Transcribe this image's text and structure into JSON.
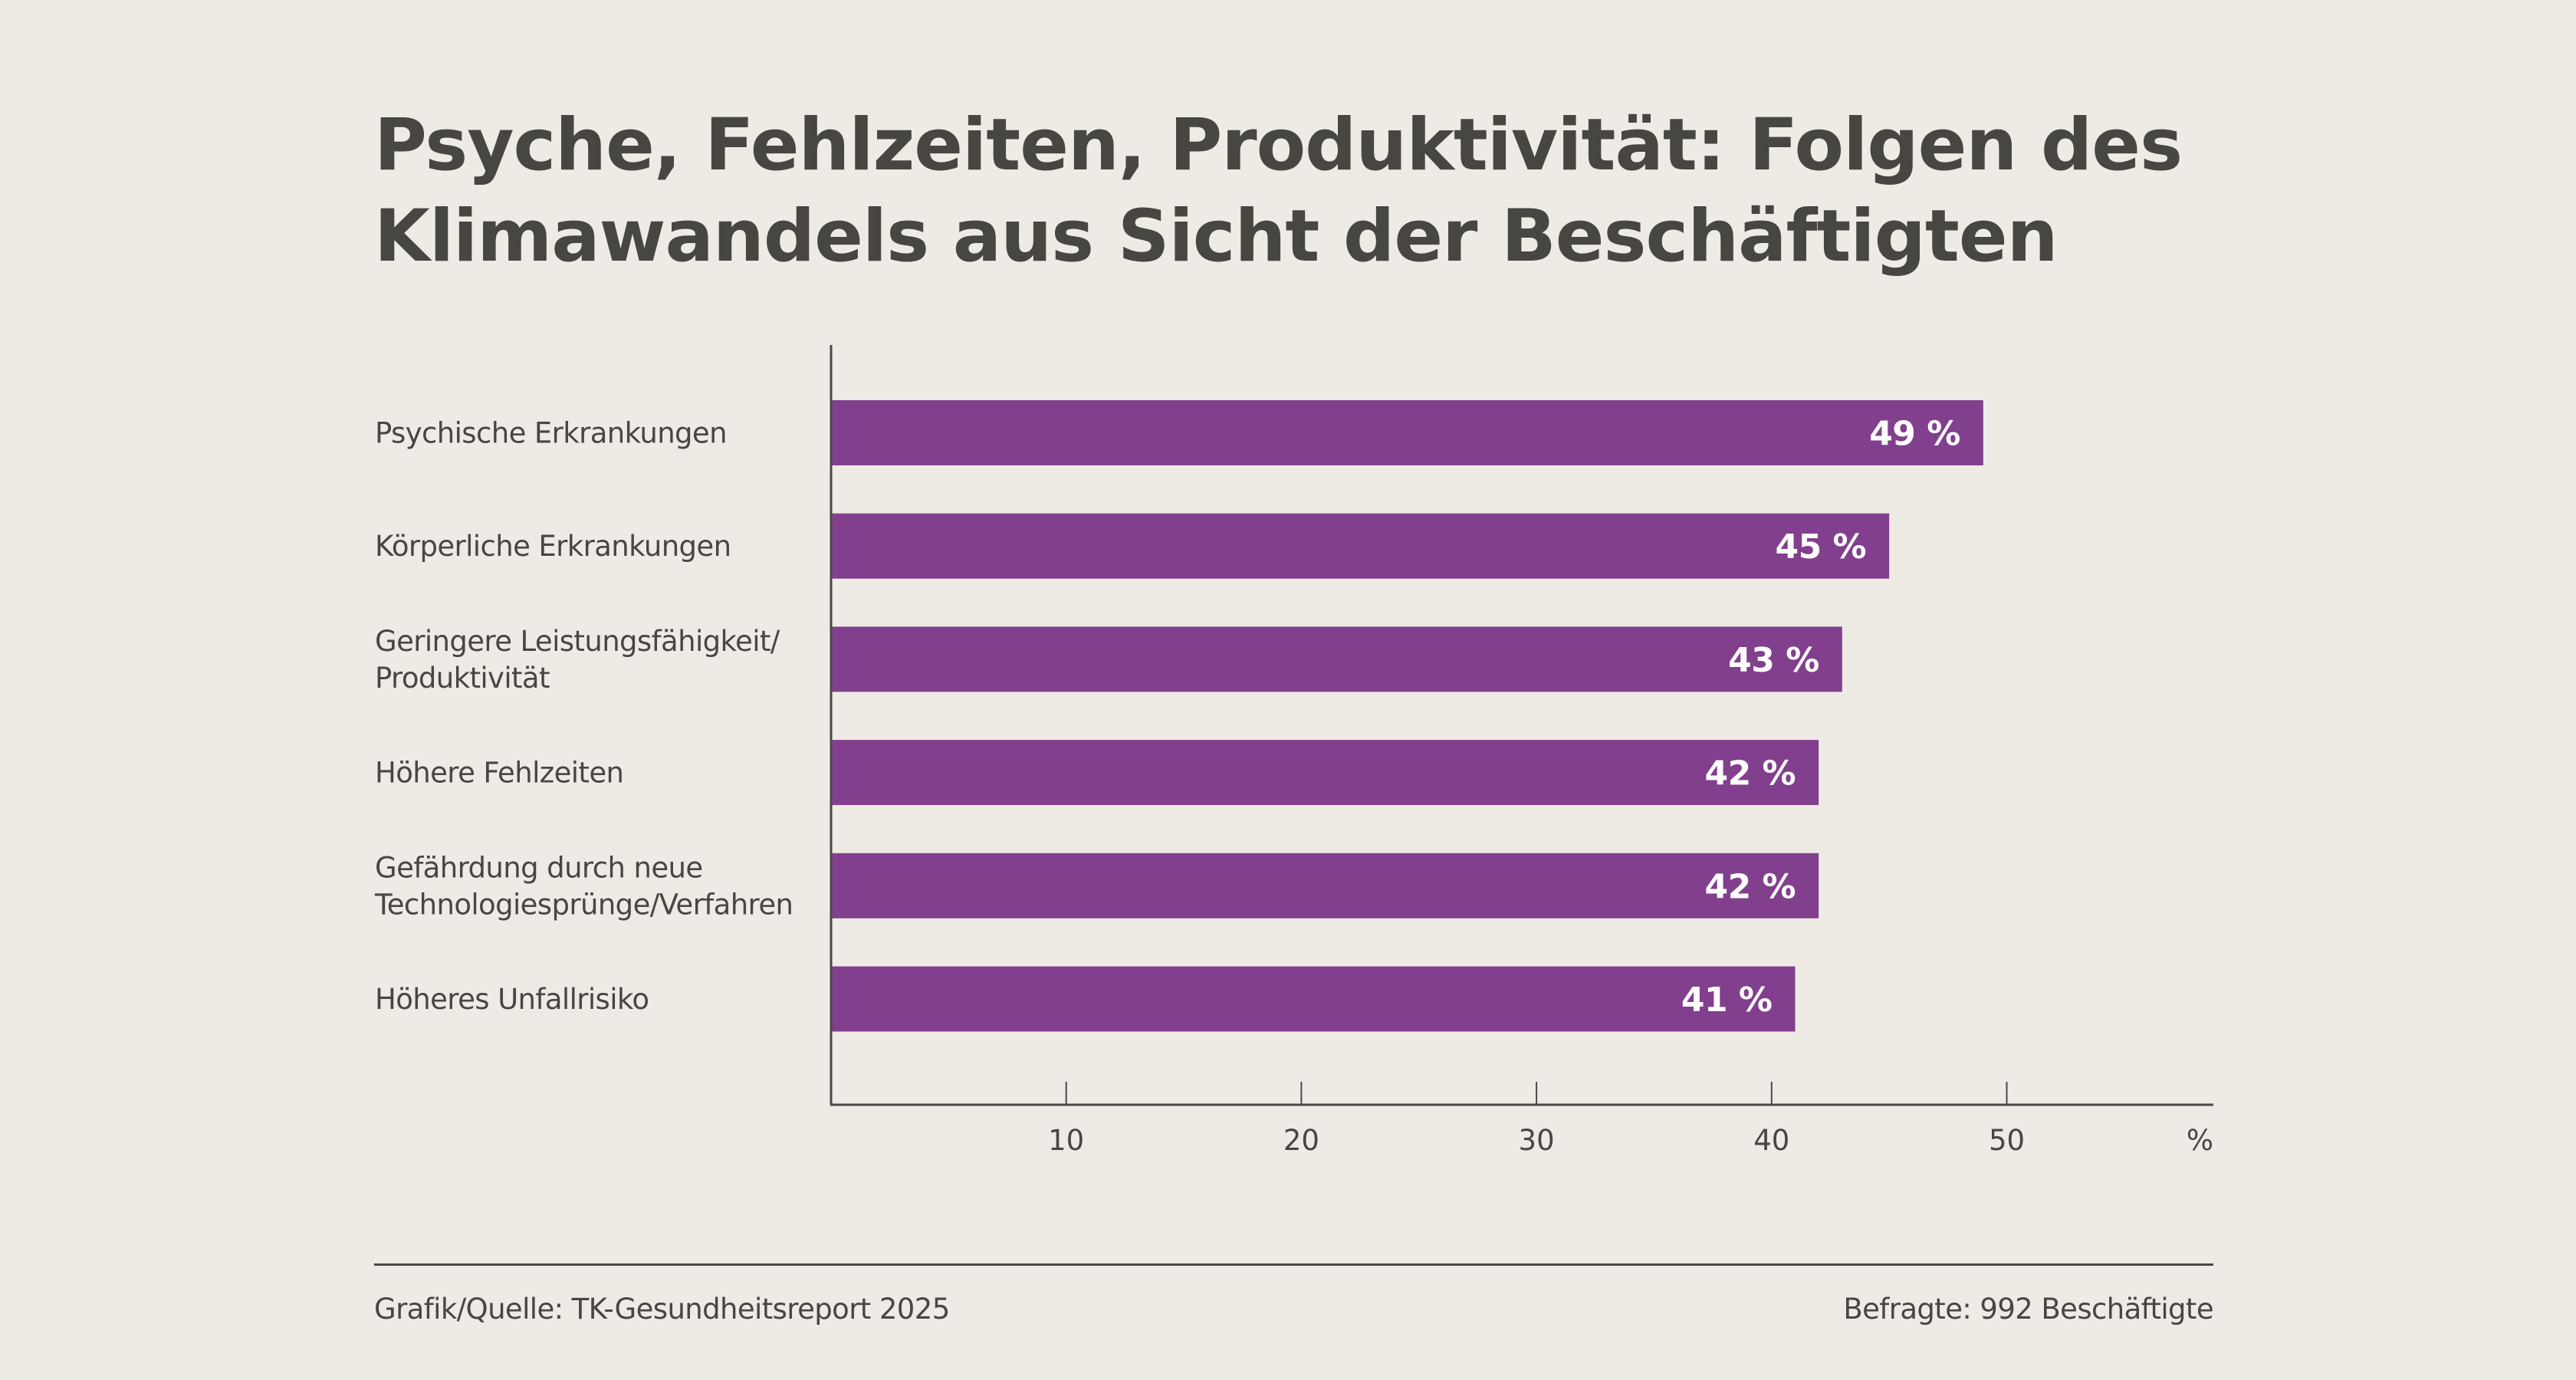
{
  "title_lines": [
    "Psyche, Fehlzeiten, Produktivität: Folgen des",
    "Klimawandels aus Sicht der Beschäftigten"
  ],
  "colors": {
    "bar": "#823F8E",
    "background": "#EEEBE5",
    "text": "#474643",
    "axis": "#4a4946",
    "value_label": "#FFFFFF"
  },
  "footer": {
    "source": "Grafik/Quelle: TK-Gesundheitsreport 2025",
    "respondents": "Befragte: 992 Beschäftigte"
  },
  "chart_data": {
    "type": "bar",
    "orientation": "horizontal",
    "title": "Psyche, Fehlzeiten, Produktivität: Folgen des Klimawandels aus Sicht der Beschäftigten",
    "categories": [
      [
        "Psychische Erkrankungen"
      ],
      [
        "Körperliche Erkrankungen"
      ],
      [
        "Geringere Leistungsfähigkeit/",
        "Produktivität"
      ],
      [
        "Höhere Fehlzeiten"
      ],
      [
        "Gefährdung durch neue",
        "Technologiesprünge/Verfahren"
      ],
      [
        "Höheres Unfallrisiko"
      ]
    ],
    "values": [
      49,
      45,
      43,
      42,
      42,
      41
    ],
    "value_labels": [
      "49 %",
      "45 %",
      "43 %",
      "42 %",
      "42 %",
      "41 %"
    ],
    "xlabel": "",
    "ylabel": "",
    "xlim": [
      0,
      54
    ],
    "x_ticks": [
      10,
      20,
      30,
      40,
      50
    ],
    "x_tick_labels": [
      "10",
      "20",
      "30",
      "40",
      "50"
    ],
    "x_unit_label": "%",
    "grid": false,
    "legend": "none"
  }
}
